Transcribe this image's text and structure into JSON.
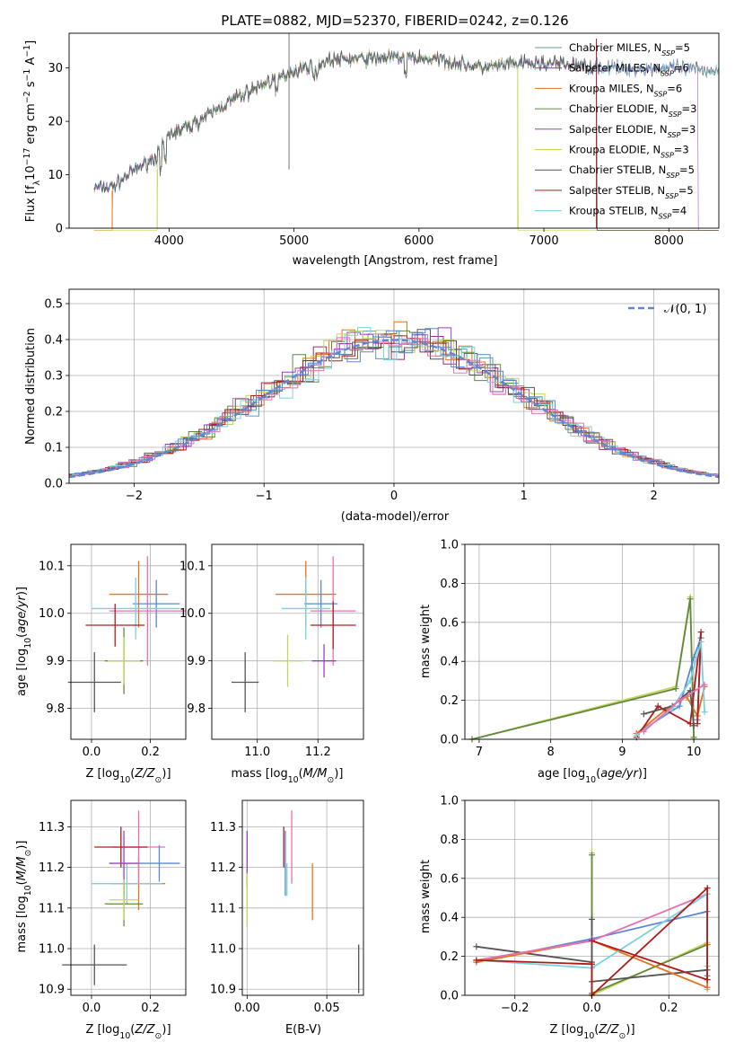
{
  "figure_title": "PLATE=0882, MJD=52370, FIBERID=0242, z=0.126",
  "colors": {
    "chabrier_miles": "#5f9ea0",
    "salpeter_miles": "#9b2c89",
    "kroupa_miles": "#e8731e",
    "chabrier_elodie": "#5f8a3f",
    "salpeter_elodie": "#9c3fc2",
    "kroupa_elodie": "#c7d65a",
    "chabrier_stelib": "#555555",
    "salpeter_stelib": "#b01c1c",
    "kroupa_stelib": "#7ad0e0",
    "model_blue": "#5a87d6",
    "pink": "#e870b0"
  },
  "chart_data": [
    {
      "id": "spectrum",
      "type": "line",
      "xlabel": "wavelength [Angstrom, rest frame]",
      "ylabel": "Flux [f_λ 10^-17 erg cm^-2 s^-1 A^-1]",
      "xlim": [
        3200,
        8400
      ],
      "ylim": [
        0,
        36.5
      ],
      "xticks": [
        "4000",
        "5000",
        "6000",
        "7000",
        "8000"
      ],
      "yticks": [
        "0",
        "10",
        "20",
        "30"
      ],
      "legend_position": "top-right",
      "series": [
        {
          "name": "Chabrier MILES",
          "nssp": "5"
        },
        {
          "name": "Salpeter MILES",
          "nssp": "6"
        },
        {
          "name": "Kroupa MILES",
          "nssp": "6"
        },
        {
          "name": "Chabrier ELODIE",
          "nssp": "3"
        },
        {
          "name": "Salpeter ELODIE",
          "nssp": "3"
        },
        {
          "name": "Kroupa ELODIE",
          "nssp": "3"
        },
        {
          "name": "Chabrier STELIB",
          "nssp": "5"
        },
        {
          "name": "Salpeter STELIB",
          "nssp": "5"
        },
        {
          "name": "Kroupa STELIB",
          "nssp": "4"
        }
      ],
      "continuum": {
        "x": [
          3400,
          3550,
          3700,
          3900,
          4000,
          4200,
          4500,
          4800,
          5000,
          5300,
          5600,
          5900,
          6200,
          6500,
          6800,
          7100,
          7400,
          7700,
          8000,
          8400
        ],
        "y": [
          7.5,
          7.8,
          10.5,
          13.5,
          17.5,
          19.5,
          24,
          27.5,
          29.5,
          31.5,
          31.8,
          32,
          31.5,
          30,
          30.8,
          30.8,
          30.2,
          29.8,
          30,
          29.5
        ]
      }
    },
    {
      "id": "residuals",
      "type": "bar",
      "xlabel": "(data-model)/error",
      "ylabel": "Normed distribution",
      "xlim": [
        -2.5,
        2.5
      ],
      "ylim": [
        0,
        0.54
      ],
      "xticks": [
        "−2",
        "−1",
        "0",
        "1",
        "2"
      ],
      "yticks": [
        "0.0",
        "0.1",
        "0.2",
        "0.3",
        "0.4",
        "0.5"
      ],
      "legend": "𝒩(0, 1)",
      "legend_position": "top-right",
      "bin_width": 0.1
    },
    {
      "id": "age_vs_Z",
      "type": "scatter",
      "xlabel": "Z [log10(Z/Z⊙)]",
      "ylabel": "age  [log10(age/yr)]",
      "xlim": [
        -0.07,
        0.32
      ],
      "ylim": [
        9.735,
        10.145
      ],
      "xticks": [
        "0.0",
        "0.2"
      ],
      "yticks": [
        "9.8",
        "9.9",
        "10.0",
        "10.1"
      ],
      "points": [
        {
          "x": 0.01,
          "y": 9.855,
          "xerr": 0.09,
          "yerr": 0.063,
          "c": "#555555"
        },
        {
          "x": 0.16,
          "y": 10.04,
          "xerr": 0.1,
          "yerr": 0.07,
          "c": "#e8731e"
        },
        {
          "x": 0.19,
          "y": 10.005,
          "xerr": 0.13,
          "yerr": 0.115,
          "c": "#e870b0"
        },
        {
          "x": 0.22,
          "y": 10.02,
          "xerr": 0.08,
          "yerr": 0.05,
          "c": "#5a87d6"
        },
        {
          "x": 0.15,
          "y": 10.01,
          "xerr": 0.15,
          "yerr": 0.065,
          "c": "#7ad0e0"
        },
        {
          "x": 0.08,
          "y": 9.975,
          "xerr": 0.1,
          "yerr": 0.045,
          "c": "#b01c1c"
        },
        {
          "x": 0.11,
          "y": 9.9,
          "xerr": 0.065,
          "yerr": 0.07,
          "c": "#5f8a3f"
        },
        {
          "x": 0.11,
          "y": 9.9,
          "xerr": 0.055,
          "yerr": 0.05,
          "c": "#c7d65a"
        }
      ]
    },
    {
      "id": "age_vs_mass",
      "type": "scatter",
      "xlabel": "mass [log10(M/M⊙)]",
      "ylabel": "",
      "xlim": [
        10.85,
        11.35
      ],
      "ylim": [
        9.735,
        10.145
      ],
      "xticks": [
        "11.0",
        "11.2"
      ],
      "yticks": [
        "9.8",
        "9.9",
        "10.0",
        "10.1"
      ],
      "points": [
        {
          "x": 10.96,
          "y": 9.855,
          "xerr": 0.045,
          "yerr": 0.063,
          "c": "#555555"
        },
        {
          "x": 11.16,
          "y": 10.04,
          "xerr": 0.1,
          "yerr": 0.07,
          "c": "#e8731e"
        },
        {
          "x": 11.25,
          "y": 10.005,
          "xerr": 0.075,
          "yerr": 0.115,
          "c": "#e870b0"
        },
        {
          "x": 11.21,
          "y": 10.02,
          "xerr": 0.055,
          "yerr": 0.05,
          "c": "#5a87d6"
        },
        {
          "x": 11.16,
          "y": 10.01,
          "xerr": 0.08,
          "yerr": 0.065,
          "c": "#7ad0e0"
        },
        {
          "x": 11.25,
          "y": 9.975,
          "xerr": 0.075,
          "yerr": 0.05,
          "c": "#b01c1c"
        },
        {
          "x": 11.22,
          "y": 9.9,
          "xerr": 0.04,
          "yerr": 0.035,
          "c": "#9c3fc2"
        },
        {
          "x": 11.1,
          "y": 9.9,
          "xerr": 0.05,
          "yerr": 0.055,
          "c": "#c7d65a"
        }
      ]
    },
    {
      "id": "weight_vs_age",
      "type": "line",
      "xlabel": "age  [log10(age/yr)]",
      "ylabel": "mass weight",
      "xlim": [
        6.8,
        10.35
      ],
      "ylim": [
        0,
        1.0
      ],
      "xticks": [
        "7",
        "8",
        "9",
        "10"
      ],
      "yticks": [
        "0.0",
        "0.2",
        "0.4",
        "0.6",
        "0.8",
        "1.0"
      ],
      "series": [
        {
          "c": "#c7d65a",
          "x": [
            6.9,
            9.75,
            9.95,
            10.0
          ],
          "y": [
            0.0,
            0.27,
            0.73,
            0.0
          ]
        },
        {
          "c": "#5f8a3f",
          "x": [
            6.9,
            9.75,
            9.95,
            10.0
          ],
          "y": [
            0.0,
            0.26,
            0.72,
            0.01
          ]
        },
        {
          "c": "#5a87d6",
          "x": [
            9.2,
            9.8,
            10.0,
            10.1,
            10.05
          ],
          "y": [
            0.03,
            0.17,
            0.42,
            0.52,
            0.1
          ]
        },
        {
          "c": "#e8731e",
          "x": [
            9.2,
            9.6,
            9.9,
            10.05,
            10.15
          ],
          "y": [
            0.03,
            0.15,
            0.22,
            0.12,
            0.27
          ]
        },
        {
          "c": "#b01c1c",
          "x": [
            9.2,
            9.5,
            9.95,
            10.1,
            10.05
          ],
          "y": [
            0.01,
            0.17,
            0.08,
            0.55,
            0.08
          ]
        },
        {
          "c": "#555555",
          "x": [
            9.3,
            9.7,
            9.95,
            10.0
          ],
          "y": [
            0.13,
            0.17,
            0.25,
            0.07
          ]
        },
        {
          "c": "#7ad0e0",
          "x": [
            9.2,
            9.7,
            9.95,
            10.1,
            10.15
          ],
          "y": [
            0.02,
            0.16,
            0.3,
            0.5,
            0.14
          ]
        },
        {
          "c": "#e870b0",
          "x": [
            9.3,
            9.8,
            10.15
          ],
          "y": [
            0.04,
            0.2,
            0.28
          ]
        }
      ]
    },
    {
      "id": "mass_vs_Z",
      "type": "scatter",
      "xlabel": "Z [log10(Z/Z⊙)]",
      "ylabel": "mass [log10(M/M⊙)]",
      "xlim": [
        -0.07,
        0.32
      ],
      "ylim": [
        10.885,
        11.365
      ],
      "xticks": [
        "0.0",
        "0.2"
      ],
      "yticks": [
        "10.9",
        "11.0",
        "11.1",
        "11.2",
        "11.3"
      ],
      "points": [
        {
          "x": 0.01,
          "y": 10.96,
          "xerr": 0.11,
          "yerr": 0.05,
          "c": "#555555"
        },
        {
          "x": 0.16,
          "y": 11.16,
          "xerr": 0.09,
          "yerr": 0.065,
          "c": "#e8731e"
        },
        {
          "x": 0.16,
          "y": 11.25,
          "xerr": 0.09,
          "yerr": 0.09,
          "c": "#e870b0"
        },
        {
          "x": 0.23,
          "y": 11.21,
          "xerr": 0.07,
          "yerr": 0.045,
          "c": "#5a87d6"
        },
        {
          "x": 0.12,
          "y": 11.16,
          "xerr": 0.12,
          "yerr": 0.05,
          "c": "#7ad0e0"
        },
        {
          "x": 0.1,
          "y": 11.25,
          "xerr": 0.09,
          "yerr": 0.05,
          "c": "#b01c1c"
        },
        {
          "x": 0.11,
          "y": 11.21,
          "xerr": 0.05,
          "yerr": 0.08,
          "c": "#9c3fc2"
        },
        {
          "x": 0.11,
          "y": 11.11,
          "xerr": 0.065,
          "yerr": 0.055,
          "c": "#5f8a3f"
        },
        {
          "x": 0.11,
          "y": 11.12,
          "xerr": 0.05,
          "yerr": 0.05,
          "c": "#c7d65a"
        }
      ]
    },
    {
      "id": "mass_vs_ebv",
      "type": "scatter",
      "xlabel": "E(B-V)",
      "ylabel": "",
      "xlim": [
        -0.003,
        0.073
      ],
      "ylim": [
        10.885,
        11.365
      ],
      "xticks": [
        "0.00",
        "0.05"
      ],
      "yticks": [
        "10.9",
        "11.0",
        "11.1",
        "11.2",
        "11.3"
      ],
      "points": [
        {
          "x": 0.07,
          "y": 10.95,
          "yerr": 0.06,
          "c": "#555555"
        },
        {
          "x": 0.041,
          "y": 11.14,
          "yerr": 0.07,
          "c": "#e8731e"
        },
        {
          "x": 0.028,
          "y": 11.25,
          "yerr": 0.09,
          "c": "#e870b0"
        },
        {
          "x": 0.024,
          "y": 11.21,
          "yerr": 0.08,
          "c": "#5a87d6"
        },
        {
          "x": 0.023,
          "y": 11.25,
          "yerr": 0.05,
          "c": "#b01c1c"
        },
        {
          "x": 0.0,
          "y": 11.22,
          "yerr": 0.07,
          "c": "#9c3fc2"
        },
        {
          "x": 0.0,
          "y": 11.12,
          "yerr": 0.065,
          "c": "#c7d65a"
        },
        {
          "x": 0.025,
          "y": 11.17,
          "yerr": 0.04,
          "c": "#7ad0e0"
        }
      ]
    },
    {
      "id": "weight_vs_Z",
      "type": "line",
      "xlabel": "Z [log10(Z/Z⊙)]",
      "ylabel": "mass weight",
      "xlim": [
        -0.33,
        0.33
      ],
      "ylim": [
        0,
        1.0
      ],
      "xticks": [
        "−0.2",
        "0.0",
        "0.2"
      ],
      "yticks": [
        "0.0",
        "0.2",
        "0.4",
        "0.6",
        "0.8",
        "1.0"
      ],
      "series": [
        {
          "c": "#c7d65a",
          "x": [
            0.0,
            0.0,
            0.0,
            0.3,
            0.3
          ],
          "y": [
            0.73,
            0.0,
            0.0,
            0.27,
            0.03
          ]
        },
        {
          "c": "#5f8a3f",
          "x": [
            0.0,
            0.0,
            0.3
          ],
          "y": [
            0.72,
            0.01,
            0.26
          ]
        },
        {
          "c": "#555555",
          "x": [
            -0.3,
            0.0,
            0.0,
            0.0,
            0.3
          ],
          "y": [
            0.25,
            0.17,
            0.39,
            0.07,
            0.13
          ]
        },
        {
          "c": "#5a87d6",
          "x": [
            -0.3,
            0.0,
            0.3,
            0.3
          ],
          "y": [
            0.17,
            0.29,
            0.43,
            0.1
          ]
        },
        {
          "c": "#e8731e",
          "x": [
            -0.3,
            0.0,
            0.3,
            0.3
          ],
          "y": [
            0.17,
            0.28,
            0.04,
            0.26
          ]
        },
        {
          "c": "#e870b0",
          "x": [
            -0.3,
            0.0,
            0.3
          ],
          "y": [
            0.18,
            0.28,
            0.52
          ]
        },
        {
          "c": "#7ad0e0",
          "x": [
            -0.3,
            0.0,
            0.3,
            0.3
          ],
          "y": [
            0.18,
            0.14,
            0.52,
            0.15
          ]
        },
        {
          "c": "#b01c1c",
          "x": [
            -0.3,
            0.0,
            0.0,
            0.3,
            0.3,
            0.0
          ],
          "y": [
            0.18,
            0.16,
            0.0,
            0.55,
            0.08,
            0.28
          ]
        }
      ]
    }
  ]
}
